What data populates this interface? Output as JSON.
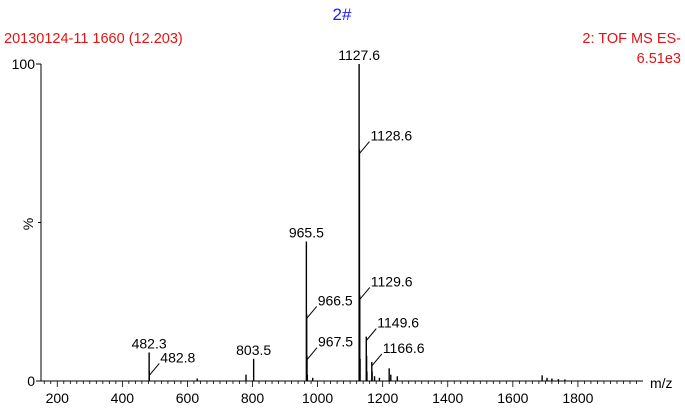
{
  "header": {
    "sample_id": "2#",
    "scan_info": "20130124-11 1660 (12.203)",
    "function_info": "2: TOF MS ES-",
    "intensity": "6.51e3"
  },
  "colors": {
    "header_blue": "#1a1aff",
    "header_red": "#e01414",
    "trace": "#000000"
  },
  "chart_data": {
    "type": "line",
    "plot_style": "mass spectrum (stick plot)",
    "xlabel": "m/z",
    "ylabel": "%",
    "xlim": [
      150,
      2000
    ],
    "ylim": [
      0,
      100
    ],
    "x_ticks": [
      200,
      400,
      600,
      800,
      1000,
      1200,
      1400,
      1600,
      1800
    ],
    "y_ticks": [
      0,
      100
    ],
    "peaks": [
      {
        "mz": 482.3,
        "intensity": 9
      },
      {
        "mz": 482.8,
        "intensity": 3
      },
      {
        "mz": 630.0,
        "intensity": 0.8
      },
      {
        "mz": 780.0,
        "intensity": 2
      },
      {
        "mz": 803.5,
        "intensity": 7
      },
      {
        "mz": 965.5,
        "intensity": 44
      },
      {
        "mz": 966.5,
        "intensity": 21
      },
      {
        "mz": 967.5,
        "intensity": 8
      },
      {
        "mz": 968.5,
        "intensity": 2
      },
      {
        "mz": 985.0,
        "intensity": 1
      },
      {
        "mz": 1127.6,
        "intensity": 100
      },
      {
        "mz": 1128.6,
        "intensity": 73
      },
      {
        "mz": 1129.6,
        "intensity": 27
      },
      {
        "mz": 1130.6,
        "intensity": 7
      },
      {
        "mz": 1149.6,
        "intensity": 14
      },
      {
        "mz": 1150.6,
        "intensity": 8
      },
      {
        "mz": 1151.6,
        "intensity": 3
      },
      {
        "mz": 1166.6,
        "intensity": 6
      },
      {
        "mz": 1167.6,
        "intensity": 3
      },
      {
        "mz": 1175.0,
        "intensity": 1.5
      },
      {
        "mz": 1190.0,
        "intensity": 1
      },
      {
        "mz": 1220.0,
        "intensity": 4
      },
      {
        "mz": 1225.0,
        "intensity": 2
      },
      {
        "mz": 1245.0,
        "intensity": 1.5
      },
      {
        "mz": 1690.0,
        "intensity": 1.8
      },
      {
        "mz": 1705.0,
        "intensity": 1
      },
      {
        "mz": 1720.0,
        "intensity": 0.8
      },
      {
        "mz": 1740.0,
        "intensity": 0.6
      },
      {
        "mz": 1760.0,
        "intensity": 0.5
      }
    ],
    "annotations": [
      {
        "text": "482.3",
        "mz": 482.3,
        "style": "top"
      },
      {
        "text": "482.8",
        "mz": 482.8,
        "style": "diag"
      },
      {
        "text": "803.5",
        "mz": 803.5,
        "style": "top"
      },
      {
        "text": "965.5",
        "mz": 965.5,
        "style": "top"
      },
      {
        "text": "966.5",
        "mz": 966.5,
        "style": "diag"
      },
      {
        "text": "967.5",
        "mz": 967.5,
        "style": "diag"
      },
      {
        "text": "1127.6",
        "mz": 1127.6,
        "style": "top"
      },
      {
        "text": "1128.6",
        "mz": 1128.6,
        "style": "diag"
      },
      {
        "text": "1129.6",
        "mz": 1129.6,
        "style": "diag"
      },
      {
        "text": "1149.6",
        "mz": 1149.6,
        "style": "diag"
      },
      {
        "text": "1166.6",
        "mz": 1166.6,
        "style": "diag"
      }
    ]
  }
}
